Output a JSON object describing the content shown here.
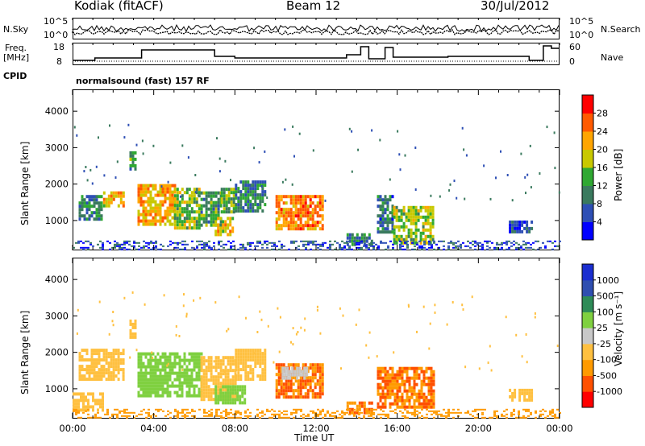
{
  "header": {
    "station": "Kodiak (fitACF)",
    "beam": "Beam 12",
    "date": "30/Jul/2012"
  },
  "top_strip": {
    "nsky_label": "N.Sky",
    "nsky_ticks": [
      "10^5",
      "10^0"
    ],
    "nsearch_label": "N.Search",
    "nsearch_ticks": [
      "10^5",
      "10^0"
    ],
    "freq_label_1": "Freq.",
    "freq_label_2": "[MHz]",
    "freq_ticks": [
      "18",
      "8"
    ],
    "nave_label": "Nave",
    "nave_ticks": [
      "60",
      "0"
    ],
    "cpid_label": "CPID",
    "cpid_text": "normalsound (fast) 157 RF"
  },
  "colors": {
    "power": [
      "#0000ff",
      "#2e4fb5",
      "#3a7a5e",
      "#2fa832",
      "#c8c800",
      "#ffa500",
      "#ff5a00",
      "#ff0000"
    ],
    "velocity": [
      "#ff0000",
      "#ff5000",
      "#ff9a00",
      "#ffc040",
      "#c8c8c8",
      "#7fd040",
      "#2e8b57",
      "#2f4fb0",
      "#1a2ed0"
    ]
  },
  "chart_data": [
    {
      "type": "heatmap",
      "title": "Power",
      "ylabel": "Slant Range [km]",
      "xlabel": "Time UT",
      "ylim": [
        180,
        4600
      ],
      "xlim": [
        0,
        24
      ],
      "yticks": [
        "1000",
        "2000",
        "3000",
        "4000"
      ],
      "xticks": [
        "00:00",
        "04:00",
        "08:00",
        "12:00",
        "16:00",
        "20:00",
        "00:00"
      ],
      "colorbar_label": "Power [dB]",
      "colorbar_ticks": [
        "28",
        "24",
        "20",
        "16",
        "12",
        "8",
        "4"
      ],
      "regions": [
        {
          "t": [
            0.3,
            1.4
          ],
          "r": [
            1000,
            1700
          ],
          "v": 10
        },
        {
          "t": [
            1.5,
            2.5
          ],
          "r": [
            1400,
            1800
          ],
          "v": 20
        },
        {
          "t": [
            2.8,
            3.1
          ],
          "r": [
            2400,
            2900
          ],
          "v": 12
        },
        {
          "t": [
            3.2,
            5.0
          ],
          "r": [
            900,
            2000
          ],
          "v": 22
        },
        {
          "t": [
            5.0,
            6.2
          ],
          "r": [
            800,
            1900
          ],
          "v": 16
        },
        {
          "t": [
            6.3,
            7.3
          ],
          "r": [
            900,
            1800
          ],
          "v": 12
        },
        {
          "t": [
            7.3,
            8.0
          ],
          "r": [
            1200,
            1900
          ],
          "v": 14
        },
        {
          "t": [
            7.0,
            7.9
          ],
          "r": [
            600,
            1100
          ],
          "v": 20
        },
        {
          "t": [
            8.0,
            9.5
          ],
          "r": [
            1300,
            2100
          ],
          "v": 10
        },
        {
          "t": [
            10.0,
            12.3
          ],
          "r": [
            800,
            1700
          ],
          "v": 24
        },
        {
          "t": [
            13.5,
            14.7
          ],
          "r": [
            350,
            650
          ],
          "v": 10
        },
        {
          "t": [
            15.0,
            15.8
          ],
          "r": [
            700,
            1700
          ],
          "v": 8
        },
        {
          "t": [
            15.8,
            17.8
          ],
          "r": [
            400,
            1400
          ],
          "v": 16
        },
        {
          "t": [
            21.5,
            22.6
          ],
          "r": [
            700,
            1000
          ],
          "v": 6
        },
        {
          "t": [
            0.0,
            24.0
          ],
          "r": [
            200,
            450
          ],
          "v": 6
        }
      ]
    },
    {
      "type": "heatmap",
      "title": "Velocity",
      "ylabel": "Slant Range [km]",
      "xlabel": "Time UT",
      "ylim": [
        180,
        4600
      ],
      "xlim": [
        0,
        24
      ],
      "yticks": [
        "1000",
        "2000",
        "3000",
        "4000"
      ],
      "xticks": [
        "00:00",
        "04:00",
        "08:00",
        "12:00",
        "16:00",
        "20:00",
        "00:00"
      ],
      "colorbar_label": "Velocity [m s⁻¹]",
      "colorbar_ticks": [
        "1000",
        "500",
        "100",
        "25",
        "-25",
        "-100",
        "-500",
        "-1000"
      ],
      "regions": [
        {
          "t": [
            0.3,
            2.5
          ],
          "r": [
            1300,
            2100
          ],
          "v": 0
        },
        {
          "t": [
            0.0,
            1.5
          ],
          "r": [
            400,
            900
          ],
          "v": 0
        },
        {
          "t": [
            2.8,
            3.1
          ],
          "r": [
            2400,
            2900
          ],
          "v": 0
        },
        {
          "t": [
            3.2,
            6.3
          ],
          "r": [
            800,
            2000
          ],
          "v": 250
        },
        {
          "t": [
            6.3,
            8.0
          ],
          "r": [
            700,
            1900
          ],
          "v": 0
        },
        {
          "t": [
            7.0,
            8.5
          ],
          "r": [
            600,
            1100
          ],
          "v": 250
        },
        {
          "t": [
            8.0,
            9.5
          ],
          "r": [
            1300,
            2100
          ],
          "v": 0
        },
        {
          "t": [
            10.0,
            12.3
          ],
          "r": [
            800,
            1700
          ],
          "v": -100
        },
        {
          "t": [
            10.3,
            11.5
          ],
          "r": [
            1300,
            1600
          ],
          "v": 60
        },
        {
          "t": [
            13.5,
            14.7
          ],
          "r": [
            350,
            650
          ],
          "v": -100
        },
        {
          "t": [
            15.0,
            17.8
          ],
          "r": [
            500,
            1600
          ],
          "v": -100
        },
        {
          "t": [
            21.5,
            22.6
          ],
          "r": [
            700,
            1000
          ],
          "v": 0
        },
        {
          "t": [
            0.0,
            24.0
          ],
          "r": [
            200,
            450
          ],
          "v": -60
        }
      ]
    }
  ]
}
